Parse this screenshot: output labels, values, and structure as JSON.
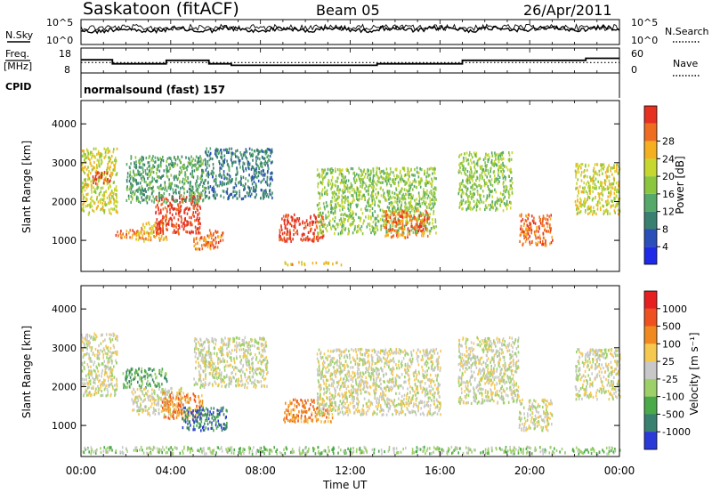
{
  "header": {
    "station": "Saskatoon (fitACF)",
    "beam": "Beam 05",
    "date": "26/Apr/2011",
    "left_labels": {
      "nsky": "N.Sky",
      "freq_line1": "Freq.",
      "freq_line2": "[MHz]",
      "cpid": "CPID"
    },
    "right_labels": {
      "nsearch": "N.Search",
      "nave": "Nave"
    },
    "cpid_value": "normalsound (fast) 157"
  },
  "chart_data": [
    {
      "type": "line",
      "name": "noise",
      "series": [
        {
          "name": "N.Sky",
          "style": "solid"
        },
        {
          "name": "N.Search",
          "style": "dotted"
        }
      ],
      "yticks_left": [
        "10^5",
        "10^0"
      ],
      "yticks_right": [
        "10^5",
        "10^0"
      ]
    },
    {
      "type": "line",
      "name": "frequency-nave",
      "series": [
        {
          "name": "Freq.",
          "style": "solid",
          "unit": "MHz",
          "x_hours": [
            0,
            1.4,
            1.4,
            3.8,
            3.8,
            5.7,
            5.7,
            6.7,
            6.7,
            13.2,
            13.2,
            17.0,
            17.0,
            22.5,
            22.5,
            24
          ],
          "values": [
            14,
            14,
            12.4,
            12.4,
            13.8,
            13.8,
            12.4,
            12.4,
            11.8,
            11.8,
            12.4,
            12.4,
            13.8,
            13.8,
            14.6,
            14.6
          ]
        },
        {
          "name": "Nave",
          "style": "dotted",
          "values_const": 25
        }
      ],
      "yticks_left": [
        "18",
        "8"
      ],
      "yticks_right": [
        "60",
        "0"
      ]
    },
    {
      "type": "heatmap",
      "name": "power",
      "ylabel": "Slant Range [km]",
      "yticks": [
        "1000",
        "2000",
        "3000",
        "4000"
      ],
      "ytick_values": [
        1000,
        2000,
        3000,
        4000
      ],
      "ylim": [
        200,
        4600
      ],
      "xlim": [
        0,
        24
      ],
      "colorbar": {
        "label": "Power [dB]",
        "ticks": [
          "4",
          "8",
          "12",
          "16",
          "20",
          "24",
          "28"
        ],
        "colors": [
          "#1e2ae8",
          "#2a4fb8",
          "#3a8070",
          "#55a86a",
          "#8cc63f",
          "#c8d630",
          "#f4b020",
          "#ee6d20",
          "#e63020"
        ]
      },
      "regions": [
        {
          "t0": 0.0,
          "t1": 1.6,
          "r0": 1700,
          "r1": 3400,
          "level": 5
        },
        {
          "t0": 0.5,
          "t1": 1.3,
          "r0": 2500,
          "r1": 2800,
          "level": 8
        },
        {
          "t0": 1.5,
          "t1": 2.4,
          "r0": 1100,
          "r1": 1300,
          "level": 7
        },
        {
          "t0": 2.4,
          "t1": 3.8,
          "r0": 1000,
          "r1": 1500,
          "level": 6
        },
        {
          "t0": 3.3,
          "t1": 5.3,
          "r0": 1200,
          "r1": 2200,
          "level": 8
        },
        {
          "t0": 5.0,
          "t1": 6.3,
          "r0": 800,
          "r1": 1300,
          "level": 7
        },
        {
          "t0": 2.0,
          "t1": 5.5,
          "r0": 2000,
          "r1": 3200,
          "level": 3
        },
        {
          "t0": 5.5,
          "t1": 8.5,
          "r0": 2100,
          "r1": 3400,
          "level": 2
        },
        {
          "t0": 8.8,
          "t1": 10.8,
          "r0": 1000,
          "r1": 1700,
          "level": 8
        },
        {
          "t0": 9.0,
          "t1": 11.6,
          "r0": 400,
          "r1": 480,
          "level": 6
        },
        {
          "t0": 10.5,
          "t1": 15.8,
          "r0": 1200,
          "r1": 2900,
          "level": 4
        },
        {
          "t0": 13.5,
          "t1": 15.5,
          "r0": 1100,
          "r1": 1800,
          "level": 7
        },
        {
          "t0": 16.8,
          "t1": 19.2,
          "r0": 1800,
          "r1": 3300,
          "level": 4
        },
        {
          "t0": 19.5,
          "t1": 21.0,
          "r0": 900,
          "r1": 1700,
          "level": 7
        },
        {
          "t0": 22.0,
          "t1": 24.0,
          "r0": 1700,
          "r1": 3000,
          "level": 5
        }
      ]
    },
    {
      "type": "heatmap",
      "name": "velocity",
      "ylabel": "Slant Range [km]",
      "yticks": [
        "1000",
        "2000",
        "3000",
        "4000"
      ],
      "ytick_values": [
        1000,
        2000,
        3000,
        4000
      ],
      "ylim": [
        200,
        4600
      ],
      "xlim": [
        0,
        24
      ],
      "xlabel": "Time UT",
      "xticks": [
        "00:00",
        "04:00",
        "08:00",
        "12:00",
        "16:00",
        "20:00",
        "00:00"
      ],
      "colorbar": {
        "label": "Velocity [m s⁻¹]",
        "ticks": [
          "1000",
          "500",
          "100",
          "25",
          "-25",
          "-100",
          "-500",
          "-1000"
        ],
        "colors": [
          "#2a3ad8",
          "#3a8070",
          "#4aaa4a",
          "#9ed06a",
          "#c8c8c8",
          "#f5c850",
          "#f08a20",
          "#ee5020",
          "#e62020"
        ]
      },
      "regions": [
        {
          "t0": 0.0,
          "t1": 1.6,
          "r0": 1800,
          "r1": 3400,
          "level": 4
        },
        {
          "t0": 1.8,
          "t1": 3.8,
          "r0": 2000,
          "r1": 2500,
          "level": 2
        },
        {
          "t0": 2.2,
          "t1": 4.5,
          "r0": 1300,
          "r1": 2000,
          "level": 4
        },
        {
          "t0": 3.6,
          "t1": 5.4,
          "r0": 1200,
          "r1": 1900,
          "level": 6
        },
        {
          "t0": 4.5,
          "t1": 6.5,
          "r0": 900,
          "r1": 1500,
          "level": 1
        },
        {
          "t0": 5.0,
          "t1": 8.3,
          "r0": 2000,
          "r1": 3300,
          "level": 4
        },
        {
          "t0": 9.0,
          "t1": 11.2,
          "r0": 1100,
          "r1": 1700,
          "level": 6
        },
        {
          "t0": 10.5,
          "t1": 16.0,
          "r0": 1300,
          "r1": 3000,
          "level": 4
        },
        {
          "t0": 16.8,
          "t1": 19.5,
          "r0": 1600,
          "r1": 3300,
          "level": 4
        },
        {
          "t0": 19.5,
          "t1": 21.0,
          "r0": 900,
          "r1": 1700,
          "level": 4
        },
        {
          "t0": 22.0,
          "t1": 24.0,
          "r0": 1700,
          "r1": 3000,
          "level": 4
        },
        {
          "t0": 0.0,
          "t1": 24.0,
          "r0": 300,
          "r1": 480,
          "level": 3
        }
      ]
    }
  ]
}
